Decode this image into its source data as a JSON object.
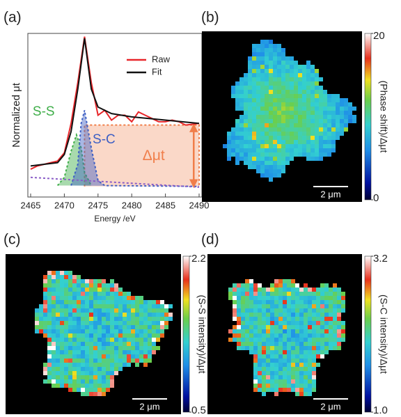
{
  "chart_data": [
    {
      "type": "line",
      "panel_label": "(a)",
      "xlabel": "Energy /eV",
      "ylabel": "Normalized μt",
      "xlim": [
        2465,
        2490
      ],
      "xticks": [
        2465,
        2470,
        2475,
        2480,
        2485,
        2490
      ],
      "ylim": [
        0,
        1
      ],
      "legend": "upper right",
      "series": [
        {
          "name": "Raw",
          "color": "#e8262a",
          "x": [
            2465,
            2466,
            2467,
            2468,
            2469,
            2470,
            2471,
            2472,
            2473,
            2474,
            2475,
            2476,
            2477,
            2478,
            2479,
            2480,
            2481,
            2482,
            2483,
            2484,
            2485,
            2486,
            2487,
            2488,
            2490
          ],
          "values": [
            0.17,
            0.19,
            0.2,
            0.21,
            0.22,
            0.27,
            0.45,
            0.7,
            0.98,
            0.7,
            0.5,
            0.53,
            0.47,
            0.5,
            0.5,
            0.46,
            0.52,
            0.5,
            0.48,
            0.46,
            0.46,
            0.47,
            0.46,
            0.44,
            0.45
          ]
        },
        {
          "name": "Fit",
          "color": "#111111",
          "x": [
            2465,
            2467,
            2469,
            2470,
            2471,
            2472,
            2473,
            2474,
            2475,
            2477,
            2480,
            2485,
            2490
          ],
          "values": [
            0.19,
            0.2,
            0.21,
            0.26,
            0.4,
            0.66,
            0.97,
            0.66,
            0.55,
            0.51,
            0.49,
            0.47,
            0.45
          ]
        }
      ],
      "components": [
        {
          "name": "Δμt",
          "color": "#f07e4a",
          "x": [
            2473,
            2473,
            2490,
            2490
          ],
          "values": [
            0.065,
            0.44,
            0.44,
            0.065
          ]
        },
        {
          "name": "S-S",
          "color": "#3fae49",
          "x": [
            2469,
            2470,
            2471,
            2471.8,
            2472.5,
            2473,
            2474
          ],
          "values": [
            0.07,
            0.12,
            0.28,
            0.38,
            0.3,
            0.15,
            0.07
          ]
        },
        {
          "name": "S-C",
          "color": "#3d5fc4",
          "x": [
            2471,
            2472,
            2472.5,
            2473,
            2474,
            2475,
            2476,
            2490
          ],
          "values": [
            0.07,
            0.2,
            0.45,
            0.53,
            0.3,
            0.1,
            0.07,
            0.065
          ]
        },
        {
          "color": "#8a5cc7",
          "x": [
            2465,
            2490
          ],
          "values": [
            0.12,
            0.06
          ]
        }
      ]
    },
    {
      "type": "image",
      "panel_label": "(b)",
      "colorbar_label": "(Phase shift)/Δμt",
      "clim": [
        0,
        20
      ],
      "cticks": [
        0,
        20
      ],
      "scale_bar": "2 μm"
    },
    {
      "type": "image",
      "panel_label": "(c)",
      "colorbar_label": "(S-S intensity)/Δμt",
      "clim": [
        0.5,
        2.2
      ],
      "cticks": [
        0.5,
        2.2
      ],
      "scale_bar": "2 μm"
    },
    {
      "type": "image",
      "panel_label": "(d)",
      "colorbar_label": "(S-C intensity)/Δμt",
      "clim": [
        1,
        3.2
      ],
      "cticks": [
        {
          "value": 1,
          "label": "1.0"
        },
        3.2
      ],
      "scale_bar": "2 μm"
    }
  ]
}
